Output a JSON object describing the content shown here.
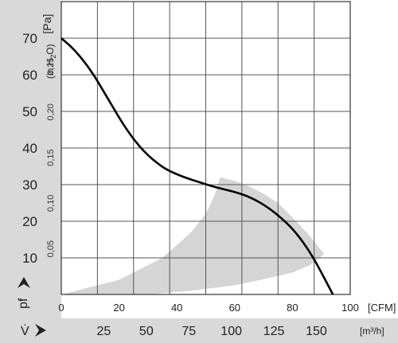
{
  "chart_data": {
    "type": "line",
    "xlabel": "CFM",
    "ylabel": "Pa",
    "xlim": [
      0,
      100
    ],
    "ylim": [
      0,
      80
    ],
    "grid": true,
    "x_ticks": [
      "0",
      "20",
      "40",
      "60",
      "80",
      "100"
    ],
    "y_ticks": [
      "70",
      "60",
      "50",
      "40",
      "30",
      "20",
      "10"
    ],
    "y2_label": "(in H",
    "y2_label_sub": "2",
    "y2_label_end": "O)",
    "y2_ticks": [
      "0,25",
      "0,20",
      "0,15",
      "0,10",
      "0,05"
    ],
    "x2_ticks": [
      "25",
      "50",
      "75",
      "100",
      "125",
      "150"
    ],
    "x2_unit": "[m³/h]",
    "x_unit": "[CFM]",
    "y_unit": "[Pa]",
    "pf_symbol": "pf",
    "v_symbol": "V̇",
    "series": [
      {
        "values": [
          [
            0,
            70
          ],
          [
            3,
            68
          ],
          [
            6,
            65.5
          ],
          [
            9,
            62.5
          ],
          [
            12,
            59
          ],
          [
            15,
            55
          ],
          [
            18,
            51
          ],
          [
            21,
            47
          ],
          [
            24,
            43.5
          ],
          [
            27,
            40.5
          ],
          [
            30,
            38
          ],
          [
            33,
            36
          ],
          [
            36,
            34.3
          ],
          [
            40,
            32.8
          ],
          [
            44,
            31.6
          ],
          [
            48,
            30.6
          ],
          [
            52,
            29.6
          ],
          [
            56,
            28.8
          ],
          [
            60,
            28
          ],
          [
            64,
            27
          ],
          [
            68,
            25.5
          ],
          [
            72,
            23.5
          ],
          [
            76,
            21
          ],
          [
            80,
            18
          ],
          [
            84,
            14
          ],
          [
            88,
            9
          ],
          [
            92,
            3
          ],
          [
            94,
            0
          ]
        ]
      }
    ],
    "shaded_region": {
      "upper": [
        [
          0,
          0
        ],
        [
          20,
          4
        ],
        [
          35,
          10
        ],
        [
          45,
          17
        ],
        [
          50,
          22
        ],
        [
          53,
          27
        ],
        [
          55,
          32
        ],
        [
          60,
          31
        ],
        [
          65,
          29.5
        ],
        [
          70,
          27.5
        ],
        [
          75,
          25
        ],
        [
          80,
          21
        ],
        [
          86,
          16
        ],
        [
          91,
          11
        ]
      ],
      "lower": [
        [
          91,
          11
        ],
        [
          86,
          8
        ],
        [
          80,
          6
        ],
        [
          72,
          4.5
        ],
        [
          60,
          2.5
        ],
        [
          45,
          1
        ],
        [
          30,
          0
        ],
        [
          0,
          0
        ]
      ]
    },
    "colors": {
      "curve": "#000000",
      "shade": "#d5d5d5",
      "band": "#d9d9d9",
      "grid": "#555555"
    }
  }
}
